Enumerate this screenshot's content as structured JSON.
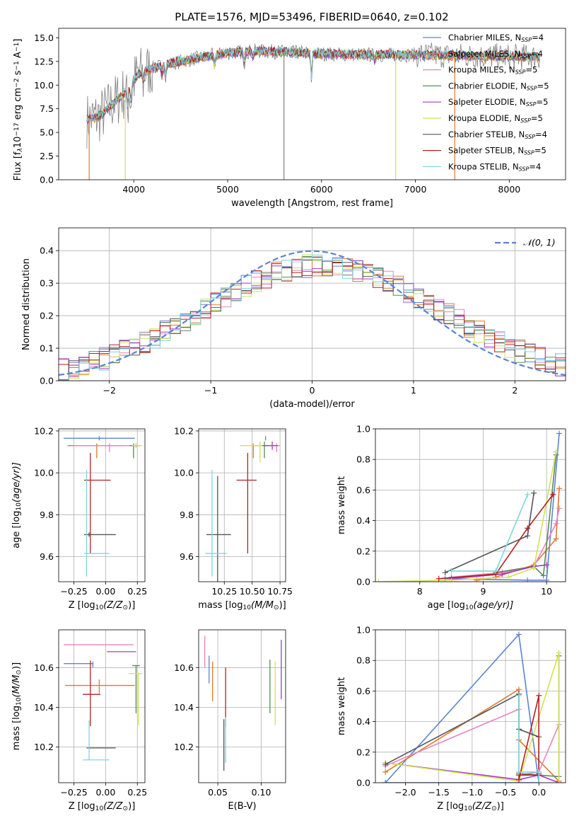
{
  "figure": {
    "title": "PLATE=1576, MJD=53496, FIBERID=0640, z=0.102"
  },
  "colors": {
    "Chabrier MILES": "#5b84d6",
    "Salpeter MILES": "#e07a2a",
    "Kroupa MILES": "#e882c4",
    "Chabrier ELODIE": "#5a8a5a",
    "Salpeter ELODIE": "#a63ac4",
    "Kroupa ELODIE": "#d4e058",
    "Chabrier STELIB": "#555555",
    "Salpeter STELIB": "#b22222",
    "Kroupa STELIB": "#7fd6dc",
    "data": "#808080",
    "normal": "#5b84d6"
  },
  "chart_data": [
    {
      "id": "spectrum",
      "type": "line",
      "xlabel": "wavelength [Angstrom, rest frame]",
      "ylabel": "Flux [f",
      "ylabel_rest": "10",
      "ylabel_exp": "−17",
      "ylabel_tail": " erg cm",
      "ylabel_exp2": "−2",
      "ylabel_tail2": " s",
      "ylabel_exp3": "−1",
      "ylabel_tail3": " A",
      "ylabel_exp4": "−1",
      "ylabel_tail4": "]",
      "ylabel_sub": "λ",
      "xlim": [
        3200,
        8600
      ],
      "ylim": [
        0,
        16
      ],
      "xticks": [
        4000,
        5000,
        6000,
        7000,
        8000
      ],
      "yticks": [
        0.0,
        2.5,
        5.0,
        7.5,
        10.0,
        12.5,
        15.0
      ],
      "continuum": [
        [
          3500,
          6.3
        ],
        [
          3650,
          6.8
        ],
        [
          3800,
          8.3
        ],
        [
          3950,
          9.6
        ],
        [
          4050,
          11.2
        ],
        [
          4200,
          11.8
        ],
        [
          4400,
          12.3
        ],
        [
          4700,
          12.9
        ],
        [
          5000,
          13.4
        ],
        [
          5300,
          13.6
        ],
        [
          5600,
          13.5
        ],
        [
          6000,
          13.3
        ],
        [
          6500,
          13.2
        ],
        [
          7000,
          13.2
        ],
        [
          7500,
          13.1
        ],
        [
          8000,
          13.0
        ],
        [
          8300,
          13.0
        ]
      ],
      "legend": [
        {
          "name": "Chabrier MILES",
          "nssp": "4"
        },
        {
          "name": "Salpeter MILES",
          "nssp": "4"
        },
        {
          "name": "Kroupa MILES",
          "nssp": "5"
        },
        {
          "name": "Chabrier ELODIE",
          "nssp": "5"
        },
        {
          "name": "Salpeter ELODIE",
          "nssp": "5"
        },
        {
          "name": "Kroupa ELODIE",
          "nssp": "5"
        },
        {
          "name": "Chabrier STELIB",
          "nssp": "4"
        },
        {
          "name": "Salpeter STELIB",
          "nssp": "5"
        },
        {
          "name": "Kroupa STELIB",
          "nssp": "4"
        }
      ],
      "legend_prefix": "N",
      "legend_sub": "SSP",
      "legend_placement": "right"
    },
    {
      "id": "residuals",
      "type": "step",
      "xlabel": "(data-model)/error",
      "ylabel": "Normed distribution",
      "xlim": [
        -2.5,
        2.5
      ],
      "ylim": [
        0,
        0.47
      ],
      "xticks": [
        -2,
        -1,
        0,
        1,
        2
      ],
      "yticks": [
        0.0,
        0.1,
        0.2,
        0.3,
        0.4
      ],
      "normal_legend": "𝒩(0, 1)",
      "legend_placement": "top-right"
    },
    {
      "id": "age_z",
      "type": "errorbar",
      "xlabel": "Z [log",
      "xlabel_sub": "10",
      "xlabel_rest": "(Z/Z",
      "xlabel_sub2": "⊙",
      "xlabel_tail": ")]",
      "ylabel": "age  [log",
      "ylabel_sub": "10",
      "ylabel_rest": "(age/yr)]",
      "xlim": [
        -0.37,
        0.31
      ],
      "ylim": [
        9.48,
        10.21
      ],
      "xticks": [
        -0.25,
        0.0,
        0.25
      ],
      "yticks": [
        9.6,
        9.8,
        10.0,
        10.2
      ],
      "points": [
        {
          "model": "Chabrier MILES",
          "x": -0.05,
          "y": 10.165,
          "xerr": [
            0.28,
            0.28
          ],
          "yerr": [
            0.01,
            0.01
          ]
        },
        {
          "model": "Salpeter MILES",
          "x": -0.07,
          "y": 10.13,
          "xerr": [
            0.23,
            0.23
          ],
          "yerr": [
            0.06,
            0.01
          ]
        },
        {
          "model": "Kroupa MILES",
          "x": 0.03,
          "y": 10.13,
          "xerr": [
            0.28,
            0.23
          ],
          "yerr": [
            0.03,
            0.01
          ]
        },
        {
          "model": "Chabrier ELODIE",
          "x": 0.22,
          "y": 10.13,
          "xerr": [
            0.03,
            0.05
          ],
          "yerr": [
            0.06,
            0.01
          ]
        },
        {
          "model": "Salpeter ELODIE",
          "x": 0.24,
          "y": 10.13,
          "xerr": [
            0.03,
            0.03
          ],
          "yerr": [
            0.01,
            0.01
          ]
        },
        {
          "model": "Kroupa ELODIE",
          "x": 0.24,
          "y": 10.13,
          "xerr": [
            0.03,
            0.05
          ],
          "yerr": [
            0.01,
            0.01
          ]
        },
        {
          "model": "Chabrier STELIB",
          "x": -0.13,
          "y": 9.705,
          "xerr": [
            0.04,
            0.21
          ],
          "yerr": [
            0.01,
            0.01
          ]
        },
        {
          "model": "Salpeter STELIB",
          "x": -0.12,
          "y": 9.965,
          "xerr": [
            0.05,
            0.16
          ],
          "yerr": [
            0.35,
            0.13
          ]
        },
        {
          "model": "Kroupa STELIB",
          "x": -0.15,
          "y": 9.615,
          "xerr": [
            0.02,
            0.18
          ],
          "yerr": [
            0.11,
            0.4
          ]
        }
      ]
    },
    {
      "id": "age_mass",
      "type": "errorbar",
      "xlabel": "mass [log",
      "xlabel_sub": "10",
      "xlabel_rest": "(M/M",
      "xlabel_sub2": "⊙",
      "xlabel_tail": ")]",
      "xlim": [
        10.02,
        10.8
      ],
      "ylim": [
        9.48,
        10.21
      ],
      "xticks": [
        10.25,
        10.5,
        10.75
      ],
      "yticks": [
        9.6,
        9.8,
        10.0,
        10.2
      ],
      "points": [
        {
          "model": "Chabrier MILES",
          "x": 10.62,
          "y": 10.165,
          "xerr": [
            0.0,
            0.0
          ],
          "yerr": [
            0.01,
            0.01
          ]
        },
        {
          "model": "Salpeter MILES",
          "x": 10.51,
          "y": 10.13,
          "xerr": [
            0.0,
            0.0
          ],
          "yerr": [
            0.06,
            0.01
          ]
        },
        {
          "model": "Kroupa MILES",
          "x": 10.72,
          "y": 10.13,
          "xerr": [
            0.03,
            0.03
          ],
          "yerr": [
            0.03,
            0.01
          ]
        },
        {
          "model": "Chabrier ELODIE",
          "x": 10.61,
          "y": 10.13,
          "xerr": [
            0.12,
            0.03
          ],
          "yerr": [
            0.06,
            0.02
          ]
        },
        {
          "model": "Salpeter ELODIE",
          "x": 10.68,
          "y": 10.13,
          "xerr": [
            0.07,
            0.05
          ],
          "yerr": [
            0.02,
            0.02
          ]
        },
        {
          "model": "Kroupa ELODIE",
          "x": 10.57,
          "y": 10.13,
          "xerr": [
            0.18,
            0.02
          ],
          "yerr": [
            0.08,
            0.02
          ]
        },
        {
          "model": "Chabrier STELIB",
          "x": 10.19,
          "y": 9.705,
          "xerr": [
            0.1,
            0.12
          ],
          "yerr": [
            0.28,
            0.28
          ]
        },
        {
          "model": "Salpeter STELIB",
          "x": 10.46,
          "y": 9.965,
          "xerr": [
            0.1,
            0.08
          ],
          "yerr": [
            0.35,
            0.13
          ]
        },
        {
          "model": "Kroupa STELIB",
          "x": 10.14,
          "y": 9.615,
          "xerr": [
            0.06,
            0.13
          ],
          "yerr": [
            0.11,
            0.4
          ]
        }
      ]
    },
    {
      "id": "weight_age",
      "type": "line",
      "xlabel": "age  [log",
      "xlabel_sub": "10",
      "xlabel_rest": "(age/yr)]",
      "ylabel": "mass weight",
      "xlim": [
        7.3,
        10.3
      ],
      "ylim": [
        0,
        1.0
      ],
      "xticks": [
        8,
        9,
        10
      ],
      "yticks": [
        0.0,
        0.2,
        0.4,
        0.6,
        0.8,
        1.0
      ],
      "series": [
        {
          "model": "Chabrier MILES",
          "x": [
            8.4,
            9.7,
            10.0,
            10.2
          ],
          "y": [
            0.02,
            0.01,
            0.01,
            0.97
          ]
        },
        {
          "model": "Salpeter MILES",
          "x": [
            8.9,
            9.2,
            9.8,
            10.15,
            10.2
          ],
          "y": [
            0.01,
            0.03,
            0.11,
            0.28,
            0.61
          ]
        },
        {
          "model": "Kroupa MILES",
          "x": [
            8.5,
            9.3,
            9.8,
            10.15,
            10.2
          ],
          "y": [
            0.03,
            0.06,
            0.1,
            0.38,
            0.48
          ]
        },
        {
          "model": "Chabrier ELODIE",
          "x": [
            9.2,
            9.8,
            9.95,
            10.15
          ],
          "y": [
            0.06,
            0.1,
            0.04,
            0.83
          ]
        },
        {
          "model": "Salpeter ELODIE",
          "x": [
            8.5,
            9.3,
            9.8,
            10.0
          ],
          "y": [
            0.02,
            0.05,
            0.1,
            0.11
          ]
        },
        {
          "model": "Kroupa ELODIE",
          "x": [
            7.35,
            8.5,
            9.4,
            9.8,
            10.15
          ],
          "y": [
            0.0,
            0.01,
            0.03,
            0.09,
            0.85
          ]
        },
        {
          "model": "Chabrier STELIB",
          "x": [
            8.4,
            9.7,
            9.8
          ],
          "y": [
            0.06,
            0.3,
            0.58
          ]
        },
        {
          "model": "Salpeter STELIB",
          "x": [
            8.3,
            9.2,
            9.7,
            10.1
          ],
          "y": [
            0.02,
            0.05,
            0.35,
            0.57
          ]
        },
        {
          "model": "Kroupa STELIB",
          "x": [
            8.5,
            9.2,
            9.7
          ],
          "y": [
            0.07,
            0.07,
            0.57
          ]
        }
      ]
    },
    {
      "id": "mass_z",
      "type": "errorbar",
      "xlabel": "Z [log",
      "xlabel_sub": "10",
      "xlabel_rest": "(Z/Z",
      "xlabel_sub2": "⊙",
      "xlabel_tail": ")]",
      "ylabel": "mass [log",
      "ylabel_sub": "10",
      "ylabel_rest": "(M/M",
      "ylabel_sub2": "⊙",
      "ylabel_tail": ")]",
      "xlim": [
        -0.37,
        0.31
      ],
      "ylim": [
        10.02,
        10.79
      ],
      "xticks": [
        -0.25,
        0.0,
        0.25
      ],
      "yticks": [
        10.2,
        10.4,
        10.6
      ],
      "points": [
        {
          "model": "Chabrier MILES",
          "x": -0.1,
          "y": 10.62,
          "xerr": [
            0.23,
            0.0
          ],
          "yerr": [
            0.02,
            0.01
          ]
        },
        {
          "model": "Salpeter MILES",
          "x": -0.05,
          "y": 10.51,
          "xerr": [
            0.27,
            0.28
          ],
          "yerr": [
            0.04,
            0.03
          ]
        },
        {
          "model": "Kroupa MILES",
          "x": -0.03,
          "y": 10.715,
          "xerr": [
            0.3,
            0.25
          ],
          "yerr": [
            0.0,
            0.0
          ]
        },
        {
          "model": "Chabrier ELODIE",
          "x": 0.24,
          "y": 10.61,
          "xerr": [
            0.03,
            0.03
          ],
          "yerr": [
            0.24,
            0.0
          ]
        },
        {
          "model": "Salpeter ELODIE",
          "x": 0.13,
          "y": 10.68,
          "xerr": [
            0.12,
            0.11
          ],
          "yerr": [
            0.0,
            0.0
          ]
        },
        {
          "model": "Kroupa ELODIE",
          "x": 0.26,
          "y": 10.57,
          "xerr": [
            0.08,
            0.03
          ],
          "yerr": [
            0.26,
            0.0
          ]
        },
        {
          "model": "Chabrier STELIB",
          "x": -0.08,
          "y": 10.195,
          "xerr": [
            0.07,
            0.16
          ],
          "yerr": [
            0.0,
            0.0
          ]
        },
        {
          "model": "Salpeter STELIB",
          "x": -0.12,
          "y": 10.465,
          "xerr": [
            0.06,
            0.08
          ],
          "yerr": [
            0.16,
            0.17
          ]
        },
        {
          "model": "Kroupa STELIB",
          "x": -0.13,
          "y": 10.135,
          "xerr": [
            0.05,
            0.16
          ],
          "yerr": [
            0.0,
            0.2
          ]
        }
      ]
    },
    {
      "id": "mass_ebv",
      "type": "errorbar",
      "xlabel": "E(B-V)",
      "xlim": [
        0.028,
        0.128
      ],
      "ylim": [
        10.02,
        10.79
      ],
      "xticks": [
        0.05,
        0.1
      ],
      "yticks": [
        10.2,
        10.4,
        10.6
      ],
      "points": [
        {
          "model": "Chabrier MILES",
          "x": 0.04,
          "y": 10.59,
          "yerr": [
            0.07,
            0.07
          ]
        },
        {
          "model": "Salpeter MILES",
          "x": 0.044,
          "y": 10.53,
          "yerr": [
            0.1,
            0.1
          ]
        },
        {
          "model": "Kroupa MILES",
          "x": 0.035,
          "y": 10.66,
          "yerr": [
            0.06,
            0.1
          ]
        },
        {
          "model": "Chabrier ELODIE",
          "x": 0.11,
          "y": 10.49,
          "yerr": [
            0.12,
            0.15
          ]
        },
        {
          "model": "Salpeter ELODIE",
          "x": 0.123,
          "y": 10.59,
          "yerr": [
            0.15,
            0.15
          ]
        },
        {
          "model": "Kroupa ELODIE",
          "x": 0.116,
          "y": 10.47,
          "yerr": [
            0.16,
            0.16
          ]
        },
        {
          "model": "Chabrier STELIB",
          "x": 0.057,
          "y": 10.2,
          "yerr": [
            0.12,
            0.14
          ]
        },
        {
          "model": "Salpeter STELIB",
          "x": 0.059,
          "y": 10.47,
          "yerr": [
            0.17,
            0.13
          ]
        },
        {
          "model": "Kroupa STELIB",
          "x": 0.059,
          "y": 10.22,
          "yerr": [
            0.1,
            0.13
          ]
        }
      ]
    },
    {
      "id": "weight_z",
      "type": "line",
      "xlabel": "Z [log",
      "xlabel_sub": "10",
      "xlabel_rest": "(Z/Z",
      "xlabel_sub2": "⊙",
      "xlabel_tail": ")]",
      "ylabel": "mass weight",
      "xlim": [
        -2.45,
        0.4
      ],
      "ylim": [
        0,
        1.0
      ],
      "xticks": [
        -2.0,
        -1.5,
        -1.0,
        -0.5,
        0.0
      ],
      "xtick_labels": [
        "−2.0",
        "−1.5",
        "−1.0",
        "−0.5",
        "0.0"
      ],
      "yticks": [
        0.0,
        0.2,
        0.4,
        0.6,
        0.8,
        1.0
      ],
      "series": [
        {
          "model": "Chabrier MILES",
          "x": [
            -2.3,
            -0.3,
            0.0,
            -2.3
          ],
          "y": [
            0.0,
            0.97,
            0.0,
            0.0
          ]
        },
        {
          "model": "Salpeter MILES",
          "x": [
            -2.3,
            -0.3,
            -0.3,
            0.3,
            0.3
          ],
          "y": [
            0.07,
            0.61,
            0.28,
            0.01,
            0.01
          ]
        },
        {
          "model": "Kroupa MILES",
          "x": [
            -2.3,
            -0.3,
            -0.3,
            0.0,
            0.3
          ],
          "y": [
            0.11,
            0.48,
            0.05,
            0.07,
            0.38
          ]
        },
        {
          "model": "Chabrier ELODIE",
          "x": [
            -0.3,
            0.3,
            0.3
          ],
          "y": [
            0.06,
            0.04,
            0.83
          ]
        },
        {
          "model": "Salpeter ELODIE",
          "x": [
            -2.3,
            -0.3,
            0.0,
            0.3
          ],
          "y": [
            0.13,
            0.02,
            0.05,
            0.0
          ]
        },
        {
          "model": "Kroupa ELODIE",
          "x": [
            -2.3,
            -0.3,
            0.3,
            0.3
          ],
          "y": [
            0.13,
            0.01,
            0.85,
            0.0
          ]
        },
        {
          "model": "Chabrier STELIB",
          "x": [
            -2.3,
            -0.3,
            -0.3,
            0.0,
            0.0
          ],
          "y": [
            0.12,
            0.58,
            0.35,
            0.3,
            0.06
          ]
        },
        {
          "model": "Salpeter STELIB",
          "x": [
            -0.3,
            0.0,
            0.0,
            -0.3
          ],
          "y": [
            0.05,
            0.05,
            0.57,
            0.02
          ]
        },
        {
          "model": "Kroupa STELIB",
          "x": [
            -0.3,
            -0.3,
            0.0,
            0.0
          ],
          "y": [
            0.57,
            0.07,
            0.07,
            0.0
          ]
        }
      ]
    }
  ]
}
